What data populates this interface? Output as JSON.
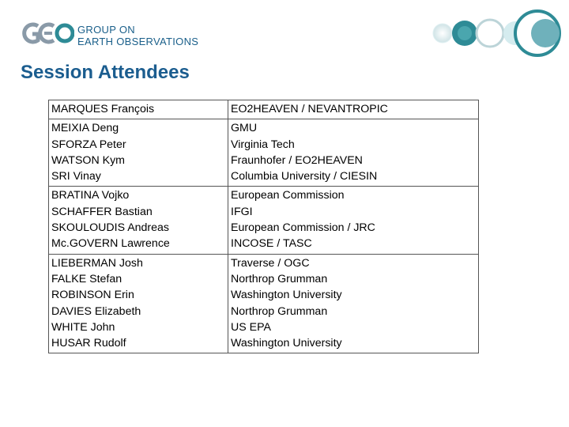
{
  "header": {
    "logo": {
      "mark_text": "GEO",
      "line1": "GROUP ON",
      "line2": "EARTH OBSERVATIONS"
    },
    "title": "Session Attendees",
    "colors": {
      "title": "#1b5d8f",
      "logo_text": "#1a5f8a",
      "deco_teal": "#2e8b96",
      "deco_light": "#c9e6ea"
    }
  },
  "table": {
    "rows": [
      {
        "names": [
          "MARQUES François"
        ],
        "orgs": [
          "EO2HEAVEN / NEVANTROPIC"
        ]
      },
      {
        "names": [
          "MEIXIA Deng",
          "SFORZA Peter",
          "WATSON Kym",
          "SRI Vinay"
        ],
        "orgs": [
          "GMU",
          "Virginia Tech",
          "Fraunhofer / EO2HEAVEN",
          "Columbia University / CIESIN"
        ]
      },
      {
        "names": [
          "BRATINA Vojko",
          "SCHAFFER Bastian",
          "SKOULOUDIS Andreas",
          "Mc.GOVERN Lawrence"
        ],
        "orgs": [
          "European Commission",
          "IFGI",
          "European Commission / JRC",
          "INCOSE / TASC"
        ]
      },
      {
        "names": [
          "LIEBERMAN Josh",
          "FALKE Stefan",
          "ROBINSON Erin",
          "DAVIES Elizabeth",
          "WHITE John",
          "HUSAR Rudolf"
        ],
        "orgs": [
          "Traverse / OGC",
          "Northrop Grumman",
          "Washington University",
          "Northrop Grumman",
          "US EPA",
          "Washington University"
        ]
      }
    ]
  }
}
